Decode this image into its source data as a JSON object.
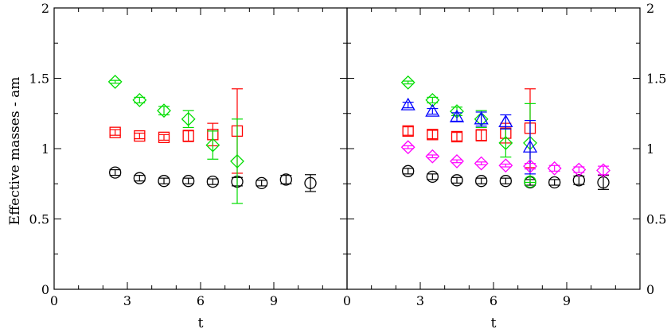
{
  "chart_data": {
    "type": "scatter",
    "layout": "two-panel, shared y axis (left labels on left panel, right labels on right panel)",
    "ylabel": "Effective masses - am",
    "xlabel": "t",
    "xlim": [
      0,
      12
    ],
    "ylim": [
      0,
      2
    ],
    "x_ticks": [
      "0",
      "3",
      "6",
      "9"
    ],
    "y_ticks": [
      "0",
      "0.5",
      "1",
      "1.5",
      "2"
    ],
    "panels": [
      {
        "name": "left",
        "series": [
          {
            "marker": "circle",
            "color": "#000000",
            "x": [
              2.5,
              3.5,
              4.5,
              5.5,
              6.5,
              7.5,
              8.5,
              9.5,
              10.5
            ],
            "y": [
              0.83,
              0.79,
              0.77,
              0.77,
              0.765,
              0.765,
              0.755,
              0.78,
              0.755
            ],
            "err": [
              0.02,
              0.02,
              0.02,
              0.02,
              0.02,
              0.03,
              0.02,
              0.03,
              0.06
            ]
          },
          {
            "marker": "square",
            "color": "#ff0000",
            "x": [
              2.5,
              3.5,
              4.5,
              5.5,
              6.5,
              7.5
            ],
            "y": [
              1.115,
              1.09,
              1.08,
              1.09,
              1.1,
              1.125
            ],
            "err": [
              0.02,
              0.02,
              0.02,
              0.04,
              0.08,
              0.3
            ]
          },
          {
            "marker": "diamond",
            "color": "#00dd00",
            "x": [
              2.5,
              3.5,
              4.5,
              5.5,
              6.5,
              7.5
            ],
            "y": [
              1.475,
              1.345,
              1.27,
              1.21,
              1.025,
              0.91
            ],
            "err": [
              0.01,
              0.02,
              0.03,
              0.06,
              0.1,
              0.3
            ]
          }
        ]
      },
      {
        "name": "right",
        "series": [
          {
            "marker": "circle",
            "color": "#000000",
            "x": [
              2.5,
              3.5,
              4.5,
              5.5,
              6.5,
              7.5,
              8.5,
              9.5,
              10.5
            ],
            "y": [
              0.84,
              0.8,
              0.775,
              0.77,
              0.77,
              0.76,
              0.76,
              0.775,
              0.76
            ],
            "err": [
              0.02,
              0.02,
              0.02,
              0.02,
              0.02,
              0.02,
              0.02,
              0.03,
              0.05
            ]
          },
          {
            "marker": "square",
            "color": "#ff0000",
            "x": [
              2.5,
              3.5,
              4.5,
              5.5,
              6.5,
              7.5
            ],
            "y": [
              1.125,
              1.1,
              1.085,
              1.095,
              1.11,
              1.145
            ],
            "err": [
              0.03,
              0.03,
              0.03,
              0.04,
              0.07,
              0.28
            ]
          },
          {
            "marker": "diamond",
            "color": "#00dd00",
            "x": [
              2.5,
              3.5,
              4.5,
              5.5,
              6.5,
              7.5
            ],
            "y": [
              1.47,
              1.345,
              1.265,
              1.21,
              1.04,
              1.04
            ],
            "err": [
              0.01,
              0.02,
              0.03,
              0.06,
              0.1,
              0.28
            ]
          },
          {
            "marker": "triangle",
            "color": "#0000ff",
            "x": [
              2.5,
              3.5,
              4.5,
              5.5,
              6.5,
              7.5
            ],
            "y": [
              1.31,
              1.265,
              1.225,
              1.21,
              1.19,
              1.01
            ],
            "err": [
              0.02,
              0.02,
              0.03,
              0.05,
              0.05,
              0.19
            ]
          },
          {
            "marker": "diamond",
            "color": "#ff00ff",
            "x": [
              2.5,
              3.5,
              4.5,
              5.5,
              6.5,
              7.5,
              8.5,
              9.5,
              10.5
            ],
            "y": [
              1.01,
              0.945,
              0.91,
              0.895,
              0.88,
              0.875,
              0.86,
              0.85,
              0.845
            ],
            "err": [
              0.01,
              0.01,
              0.01,
              0.01,
              0.01,
              0.02,
              0.02,
              0.02,
              0.03
            ]
          },
          {
            "marker": "circle",
            "color": "#00dd00",
            "x": [
              7.5
            ],
            "y": [
              0.765
            ],
            "err": [
              0.0
            ]
          }
        ]
      }
    ]
  }
}
